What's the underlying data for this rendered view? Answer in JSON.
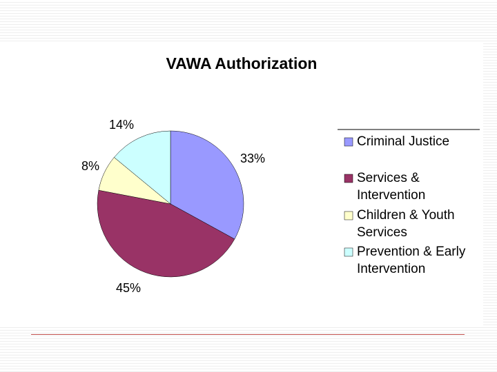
{
  "chart_data": {
    "type": "pie",
    "title": "VAWA Authorization",
    "values": [
      33,
      45,
      8,
      14
    ],
    "data_labels": [
      "33%",
      "45%",
      "8%",
      "14%"
    ],
    "categories": [
      "Criminal Justice",
      "Services & Intervention",
      "Children & Youth Services",
      "Prevention & Early Intervention"
    ],
    "legend_lines": [
      [
        "Criminal Justice"
      ],
      [
        "Services &",
        "Intervention"
      ],
      [
        "Children & Youth",
        "Services"
      ],
      [
        "Prevention & Early",
        "Intervention"
      ]
    ],
    "colors": [
      "#9999ff",
      "#993366",
      "#ffffcc",
      "#ccffff"
    ],
    "start_angle": "12 o'clock",
    "direction": "clockwise",
    "legend_position": "right"
  }
}
